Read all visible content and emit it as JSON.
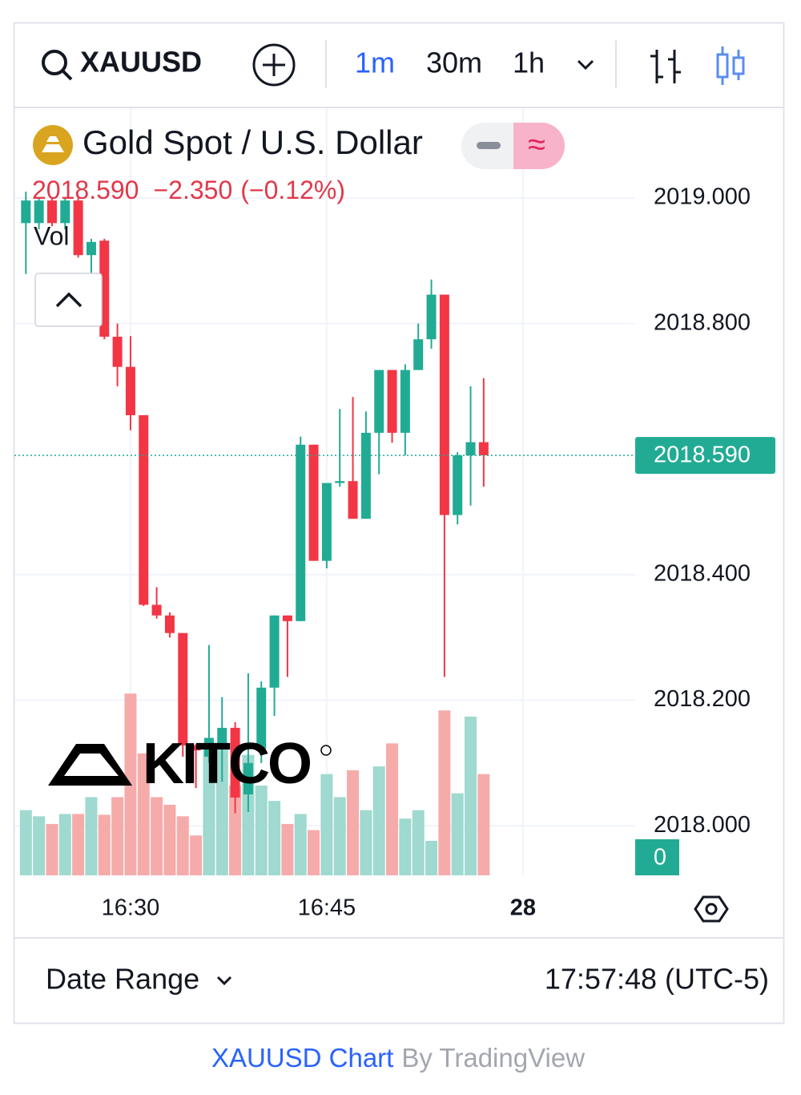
{
  "toolbar": {
    "symbol": "XAUUSD",
    "intervals": [
      "1m",
      "30m",
      "1h"
    ]
  },
  "chart_data": {
    "type": "candlestick",
    "title": "Gold Spot / U.S. Dollar",
    "quote": {
      "last": "2018.590",
      "change": "−2.350",
      "change_pct": "(−0.12%)"
    },
    "volume_label": "Vol",
    "watermark": "KITCO",
    "categories": [
      null,
      null,
      null,
      null,
      null,
      null,
      null,
      null,
      "16:30",
      null,
      null,
      null,
      null,
      null,
      null,
      null,
      null,
      null,
      null,
      null,
      null,
      null,
      null,
      "16:45",
      null,
      null,
      null,
      null,
      null,
      null,
      null,
      null,
      null,
      null,
      null,
      null,
      null,
      null,
      "28"
    ],
    "open": [
      2018.96,
      2018.96,
      2018.996,
      2018.96,
      2018.996,
      2018.909,
      2018.932,
      2018.779,
      2018.731,
      2018.654,
      2018.352,
      2018.335,
      2018.307,
      2018.128,
      2018.11,
      2018.131,
      2018.156,
      2018.05,
      2018.122,
      2018.22,
      2018.335,
      2018.326,
      2018.607,
      2018.422,
      2018.546,
      2018.549,
      2018.489,
      2018.626,
      2018.726,
      2018.626,
      2018.726,
      2018.775,
      2018.846,
      2018.495,
      2018.59,
      2018.611,
      null,
      null,
      null
    ],
    "high": [
      2019.01,
      2019.0,
      2019.0,
      2019.0,
      2019.0,
      2018.935,
      2018.935,
      2018.8,
      2018.78,
      2018.654,
      2018.38,
      2018.34,
      2018.307,
      2018.13,
      2018.288,
      2018.205,
      2018.165,
      2018.243,
      2018.23,
      2018.335,
      2018.335,
      2018.62,
      2018.607,
      2018.546,
      2018.664,
      2018.683,
      2018.66,
      2018.726,
      2018.726,
      2018.735,
      2018.8,
      2018.87,
      2018.846,
      2018.595,
      2018.7,
      2018.713,
      null,
      null,
      null
    ],
    "low": [
      2018.879,
      2018.95,
      2018.955,
      2018.95,
      2018.905,
      2018.88,
      2018.775,
      2018.7,
      2018.63,
      2018.35,
      2018.33,
      2018.3,
      2018.11,
      2018.06,
      2018.1,
      2018.07,
      2018.02,
      2018.022,
      2018.1,
      2018.175,
      2018.237,
      2018.326,
      2018.422,
      2018.41,
      2018.54,
      2018.489,
      2018.489,
      2018.56,
      2018.61,
      2018.59,
      2018.726,
      2018.76,
      2018.237,
      2018.48,
      2018.51,
      2018.54,
      null,
      null,
      null
    ],
    "close": [
      2018.996,
      2018.996,
      2018.96,
      2018.996,
      2018.909,
      2018.93,
      2018.779,
      2018.731,
      2018.654,
      2018.352,
      2018.335,
      2018.307,
      2018.128,
      2018.12,
      2018.14,
      2018.156,
      2018.045,
      2018.1,
      2018.22,
      2018.335,
      2018.326,
      2018.607,
      2018.422,
      2018.546,
      2018.549,
      2018.489,
      2018.626,
      2018.726,
      2018.626,
      2018.726,
      2018.775,
      2018.846,
      2018.495,
      2018.59,
      2018.611,
      2018.59,
      null,
      null,
      null
    ],
    "volume": [
      85,
      77,
      67,
      80,
      80,
      102,
      79,
      102,
      237,
      159,
      102,
      92,
      77,
      52,
      172,
      167,
      117,
      157,
      117,
      97,
      67,
      80,
      59,
      132,
      102,
      137,
      85,
      142,
      172,
      74,
      85,
      45,
      215,
      107,
      207,
      132,
      null,
      null,
      null
    ],
    "up_color": "#22ab94",
    "down_color": "#f23645",
    "up_volume_color": "#9fd9cf",
    "down_volume_color": "#f6abab",
    "ylim": [
      2017.921,
      2019.143
    ],
    "yticks": [
      {
        "value": 2018.0,
        "label": "2018.000"
      },
      {
        "value": 2018.2,
        "label": "2018.200"
      },
      {
        "value": 2018.4,
        "label": "2018.400"
      },
      {
        "value": 2018.8,
        "label": "2018.800"
      },
      {
        "value": 2019.0,
        "label": "2019.000"
      }
    ],
    "volume_lim": [
      0,
      1000
    ],
    "volume_ticks": [
      0
    ],
    "last_price": {
      "value": 2018.59,
      "label": "2018.590"
    },
    "grid": true
  },
  "footer": {
    "date_range": "Date Range",
    "time": "17:57:48 (UTC-5)"
  },
  "credit": {
    "link": "XAUUSD Chart",
    "by": "By TradingView"
  }
}
